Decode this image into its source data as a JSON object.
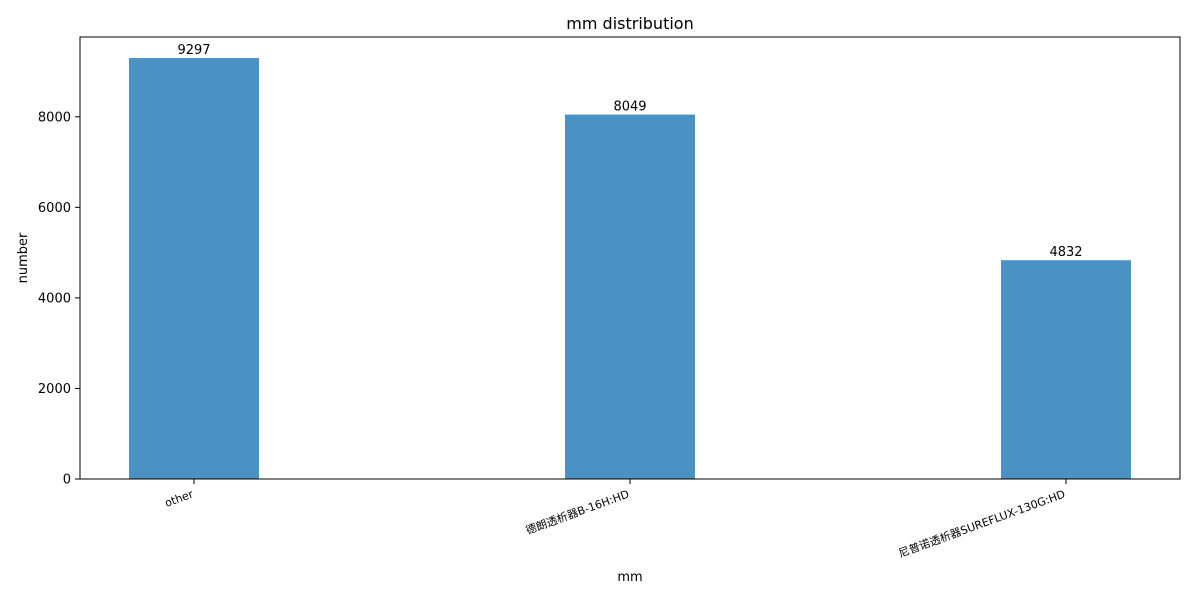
{
  "chart_data": {
    "type": "bar",
    "title": "mm distribution",
    "xlabel": "mm",
    "ylabel": "number",
    "categories": [
      "other",
      "德朗透析器B-16H:HD",
      "尼普诺透析器SUREFLUX-130G:HD"
    ],
    "values": [
      9297,
      8049,
      4832
    ],
    "yticks": [
      0,
      2000,
      4000,
      6000,
      8000
    ],
    "ylim": [
      0,
      9762
    ],
    "bar_color": "#4a92c4",
    "grid": false,
    "legend": "none"
  }
}
